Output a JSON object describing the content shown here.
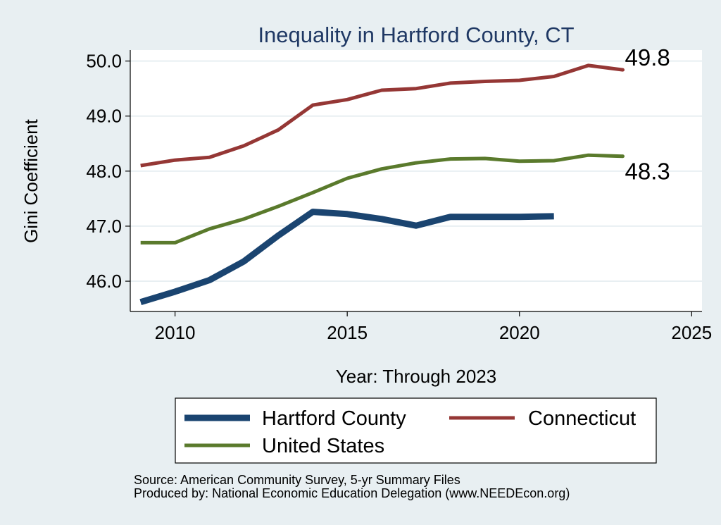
{
  "chart_data": {
    "type": "line",
    "title": "Inequality in Hartford County, CT",
    "xlabel": "Year: Through 2023",
    "ylabel": "Gini Coefficient",
    "xlim": [
      2008.7,
      2025.3
    ],
    "ylim": [
      45.45,
      50.2
    ],
    "xticks": [
      2010,
      2015,
      2020,
      2025
    ],
    "yticks": [
      46,
      47,
      48,
      49,
      50
    ],
    "ytick_labels": [
      "46.0",
      "47.0",
      "48.0",
      "49.0",
      "50.0"
    ],
    "grid": true,
    "series": [
      {
        "name": "Hartford County",
        "color": "#1a4470",
        "x": [
          2009,
          2010,
          2011,
          2012,
          2013,
          2014,
          2015,
          2016,
          2017,
          2018,
          2019,
          2020,
          2021
        ],
        "values": [
          45.62,
          45.81,
          46.02,
          46.36,
          46.83,
          47.26,
          47.22,
          47.13,
          47.01,
          47.17,
          47.17,
          47.17,
          47.18
        ]
      },
      {
        "name": "Connecticut",
        "color": "#953735",
        "x": [
          2009,
          2010,
          2011,
          2012,
          2013,
          2014,
          2015,
          2016,
          2017,
          2018,
          2019,
          2020,
          2021,
          2022,
          2023
        ],
        "values": [
          48.1,
          48.2,
          48.25,
          48.46,
          48.75,
          49.2,
          49.3,
          49.47,
          49.5,
          49.6,
          49.63,
          49.65,
          49.72,
          49.92,
          49.84
        ],
        "end_label": "49.8"
      },
      {
        "name": "United States",
        "color": "#5a7a2c",
        "x": [
          2009,
          2010,
          2011,
          2012,
          2013,
          2014,
          2015,
          2016,
          2017,
          2018,
          2019,
          2020,
          2021,
          2022,
          2023
        ],
        "values": [
          46.7,
          46.7,
          46.95,
          47.13,
          47.36,
          47.61,
          47.87,
          48.04,
          48.15,
          48.22,
          48.23,
          48.18,
          48.19,
          48.29,
          48.27
        ],
        "end_label": "48.3"
      }
    ],
    "legend": [
      "Hartford County",
      "Connecticut",
      "United States"
    ],
    "source_note": "Source: American Community Survey, 5-yr Summary Files",
    "produced_note": "Produced by: National Economic Education Delegation (www.NEEDEcon.org)"
  }
}
